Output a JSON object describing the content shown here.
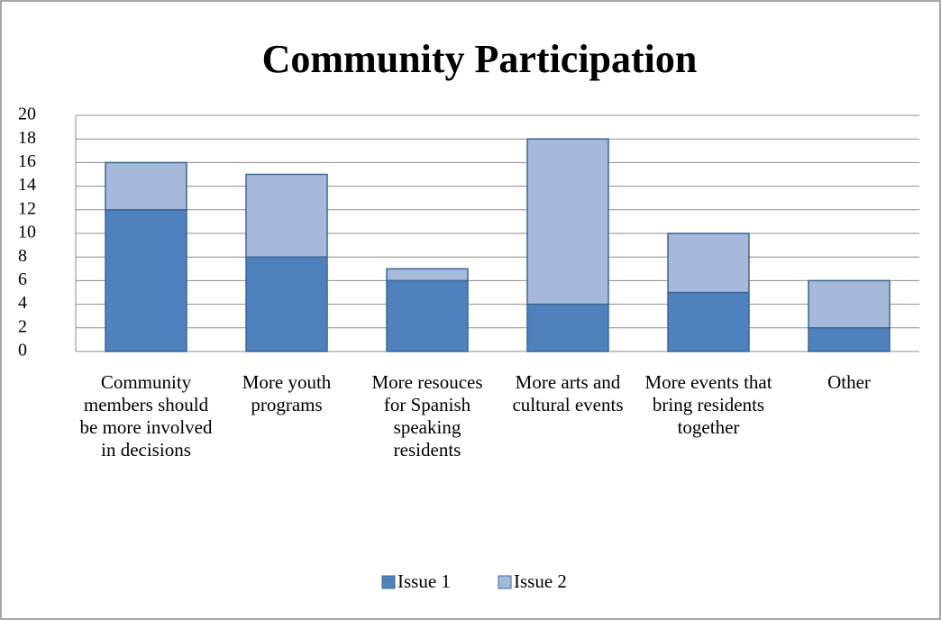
{
  "chart_data": {
    "type": "stacked_bar",
    "title": "Community Participation",
    "categories": [
      "Community members should be more involved in decisions",
      "More youth programs",
      "More resouces for Spanish speaking residents",
      "More arts and cultural events",
      "More events that bring residents together",
      "Other"
    ],
    "series": [
      {
        "name": "Issue 1",
        "color": "#4f81bd",
        "values": [
          12,
          8,
          6,
          4,
          5,
          2
        ]
      },
      {
        "name": "Issue 2",
        "color": "#a7b9db",
        "values": [
          4,
          7,
          1,
          14,
          5,
          4
        ]
      }
    ],
    "ylim": [
      0,
      20
    ],
    "yticks": [
      0,
      2,
      4,
      6,
      8,
      10,
      12,
      14,
      16,
      18,
      20
    ],
    "grid": true,
    "legend": "bottom"
  }
}
